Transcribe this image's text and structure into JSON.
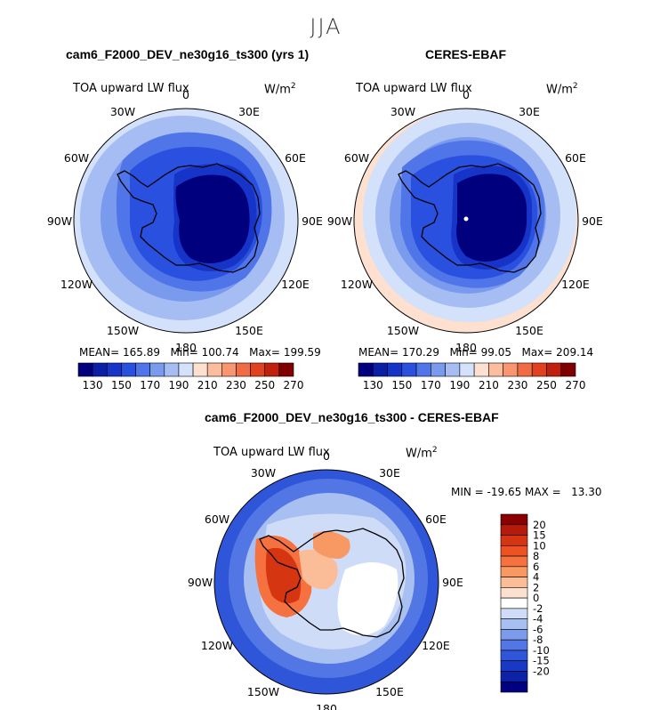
{
  "season": "JJA",
  "panels": [
    {
      "title": "cam6_F2000_DEV_ne30g16_ts300 (yrs 1)",
      "variable": "TOA upward LW flux",
      "units": "W/m",
      "units_sup": "2",
      "stats": {
        "mean_label": "MEAN=",
        "mean": "165.89",
        "min_label": "Min=",
        "min": "100.74",
        "max_label": "Max=",
        "max": "199.59"
      }
    },
    {
      "title": "CERES-EBAF",
      "variable": "TOA upward LW flux",
      "units": "W/m",
      "units_sup": "2",
      "stats": {
        "mean_label": "MEAN=",
        "mean": "170.29",
        "min_label": "Min=",
        "min": "99.05",
        "max_label": "Max=",
        "max": "209.14"
      }
    },
    {
      "title": "cam6_F2000_DEV_ne30g16_ts300 - CERES-EBAF",
      "variable": "TOA upward LW flux",
      "units": "W/m",
      "units_sup": "2",
      "minmax": "MIN = -19.65 MAX =   13.30"
    }
  ],
  "lon_labels": [
    "0",
    "30E",
    "60E",
    "90E",
    "120E",
    "150E",
    "180",
    "150W",
    "120W",
    "90W",
    "60W",
    "30W"
  ],
  "abs_colorbar": {
    "colors": [
      "#00007f",
      "#0a1ea6",
      "#1634c8",
      "#2a50e0",
      "#4f75e8",
      "#7a9aee",
      "#a6bdf4",
      "#d3e1fb",
      "#fde0cf",
      "#fbbd9e",
      "#f99570",
      "#f06c45",
      "#e0411e",
      "#c0200e",
      "#800000"
    ],
    "tick_labels": [
      "130",
      "150",
      "170",
      "190",
      "210",
      "230",
      "250",
      "270"
    ]
  },
  "diff_colorbar": {
    "colors": [
      "#8b0000",
      "#b51a0a",
      "#d63512",
      "#ee5223",
      "#f5713f",
      "#f89863",
      "#fbbc98",
      "#fde0cf",
      "#ffffff",
      "#cfdcf8",
      "#a7bff1",
      "#7c9ceb",
      "#5276e3",
      "#2f55d8",
      "#1838c6",
      "#0c22a8",
      "#000080"
    ],
    "tick_labels": [
      "20",
      "15",
      "10",
      "8",
      "6",
      "4",
      "2",
      "0",
      "-2",
      "-4",
      "-6",
      "-8",
      "-10",
      "-15",
      "-20"
    ]
  }
}
